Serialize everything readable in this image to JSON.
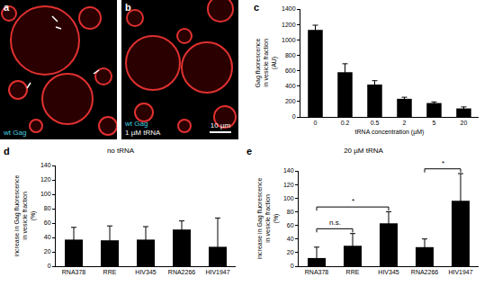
{
  "panels": [
    {
      "label": "a",
      "texts": [
        "wt Gag"
      ]
    },
    {
      "label": "b",
      "texts": [
        "wt Gag",
        "1 µM tRNA"
      ],
      "scale_bar": "10 µm"
    }
  ],
  "chart_data": [
    {
      "panel_label": "c",
      "type": "bar",
      "categories": [
        "0",
        "0.2",
        "0.5",
        "2",
        "5",
        "20"
      ],
      "values": [
        1130,
        580,
        420,
        235,
        180,
        110
      ],
      "errors": [
        60,
        110,
        50,
        20,
        15,
        20
      ],
      "xlabel": "tRNA concentration (µM)",
      "ylabel": [
        "Gag fluorescence",
        "in vesicle fraction",
        "(AU)"
      ],
      "ylim": [
        0,
        1400
      ],
      "yticks": [
        0,
        200,
        400,
        600,
        800,
        1000,
        1200,
        1400
      ],
      "color": "#000000"
    },
    {
      "panel_label": "d",
      "type": "bar",
      "title": "no tRNA",
      "categories": [
        "RNA378",
        "RRE",
        "HIV345",
        "RNA2266",
        "HIV1947"
      ],
      "values": [
        37,
        36,
        37,
        51,
        27
      ],
      "errors": [
        17,
        20,
        18,
        12,
        40
      ],
      "ylabel": [
        "increase in Gag fluorescence",
        "in vesicle fraction",
        "(%)"
      ],
      "ylim": [
        0,
        140
      ],
      "yticks": [
        0,
        20,
        40,
        60,
        80,
        100,
        120,
        140
      ],
      "color": "#000000"
    },
    {
      "panel_label": "e",
      "type": "bar",
      "title": "20 µM tRNA",
      "categories": [
        "RNA378",
        "RRE",
        "HIV345",
        "RNA2266",
        "HIV1947"
      ],
      "values": [
        12,
        30,
        63,
        28,
        96
      ],
      "errors": [
        16,
        18,
        17,
        12,
        40
      ],
      "ylabel": [
        "increase in Gag fluorescence",
        "in vesicle fraction",
        "(%)"
      ],
      "ylim": [
        0,
        140
      ],
      "yticks": [
        0,
        20,
        40,
        60,
        80,
        100,
        120,
        140
      ],
      "color": "#000000",
      "significance": [
        {
          "from": "RNA378",
          "to": "RRE",
          "label": "n.s."
        },
        {
          "from": "RNA378",
          "to": "HIV345",
          "label": "*"
        },
        {
          "from": "RNA2266",
          "to": "HIV1947",
          "label": "*"
        }
      ]
    }
  ]
}
